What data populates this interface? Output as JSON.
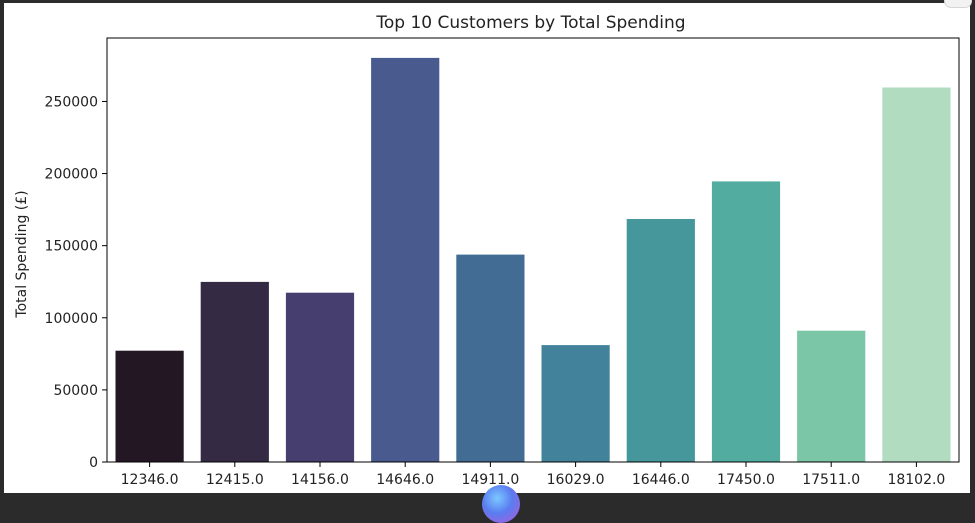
{
  "chart_data": {
    "type": "bar",
    "title": "Top 10 Customers by Total Spending",
    "xlabel": "",
    "ylabel": "Total Spending (£)",
    "categories": [
      "12346.0",
      "12415.0",
      "14156.0",
      "14646.0",
      "14911.0",
      "16029.0",
      "16446.0",
      "17450.0",
      "17511.0",
      "18102.0"
    ],
    "values": [
      77183.6,
      124914.53,
      117379.63,
      280206.02,
      143825.06,
      81024.84,
      168472.5,
      194550.79,
      91062.38,
      259657.3
    ],
    "colors": [
      "#221722",
      "#352a44",
      "#463e6e",
      "#485a8e",
      "#436c94",
      "#42829a",
      "#46979b",
      "#52ada0",
      "#7cc6a8",
      "#b2dcc0"
    ],
    "ylim": [
      0,
      294000
    ],
    "yticks": [
      0,
      50000,
      100000,
      150000,
      200000,
      250000
    ],
    "grid": false,
    "legend": "none"
  }
}
